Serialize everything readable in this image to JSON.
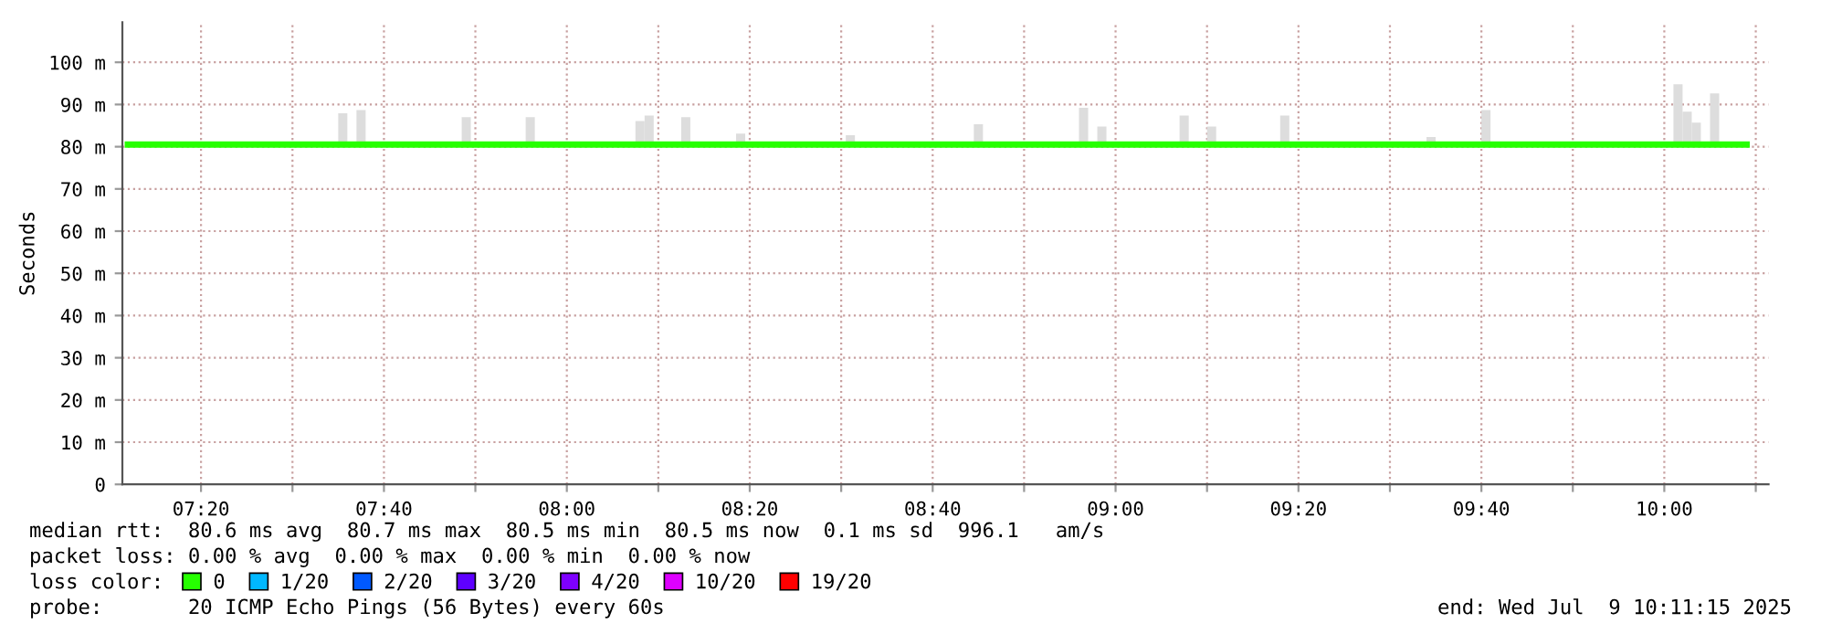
{
  "chart_data": {
    "type": "line",
    "ylabel": "Seconds",
    "legend_title": "loss color:",
    "legend": "bottom",
    "grid": true,
    "marker": "none",
    "line_style": "solid",
    "xlim": [
      7.19,
      10.19
    ],
    "xticks": [
      {
        "value": 7.3333,
        "label": "07:20"
      },
      {
        "value": 7.5,
        "label": null
      },
      {
        "value": 7.6667,
        "label": "07:40"
      },
      {
        "value": 7.8333,
        "label": null
      },
      {
        "value": 8.0,
        "label": "08:00"
      },
      {
        "value": 8.1667,
        "label": null
      },
      {
        "value": 8.3333,
        "label": "08:20"
      },
      {
        "value": 8.5,
        "label": null
      },
      {
        "value": 8.6667,
        "label": "08:40"
      },
      {
        "value": 8.8333,
        "label": null
      },
      {
        "value": 9.0,
        "label": "09:00"
      },
      {
        "value": 9.1667,
        "label": null
      },
      {
        "value": 9.3333,
        "label": "09:20"
      },
      {
        "value": 9.5,
        "label": null
      },
      {
        "value": 9.6667,
        "label": "09:40"
      },
      {
        "value": 9.8333,
        "label": null
      },
      {
        "value": 10.0,
        "label": "10:00"
      },
      {
        "value": 10.1667,
        "label": null
      }
    ],
    "ylim": [
      0,
      109.5
    ],
    "yticks": [
      {
        "value": 0,
        "label": "0"
      },
      {
        "value": 10,
        "label": "10 m"
      },
      {
        "value": 20,
        "label": "20 m"
      },
      {
        "value": 30,
        "label": "30 m"
      },
      {
        "value": 40,
        "label": "40 m"
      },
      {
        "value": 50,
        "label": "50 m"
      },
      {
        "value": 60,
        "label": "60 m"
      },
      {
        "value": 70,
        "label": "70 m"
      },
      {
        "value": 80,
        "label": "80 m"
      },
      {
        "value": 90,
        "label": "90 m"
      },
      {
        "value": 100,
        "label": "100 m"
      }
    ],
    "series": [
      {
        "type": "bar",
        "color": "#dddddd",
        "x": [
          7.5917,
          7.625,
          7.8167,
          7.9333,
          8.1333,
          8.15,
          8.2167,
          8.3167,
          8.5167,
          8.75,
          8.9417,
          8.975,
          9.125,
          9.175,
          9.3083,
          9.575,
          9.675,
          10.025,
          10.0417,
          10.0583,
          10.0917
        ],
        "base": [
          80.5,
          80.5,
          80.5,
          80.5,
          80.5,
          80.5,
          80.5,
          80.5,
          80.5,
          80.5,
          80.5,
          80.5,
          80.5,
          80.5,
          80.5,
          80.5,
          80.5,
          80.5,
          80.5,
          80.5,
          80.5
        ],
        "values": [
          7.4,
          8.2,
          6.5,
          6.5,
          5.6,
          6.9,
          6.5,
          2.6,
          2.2,
          4.8,
          8.7,
          4.3,
          6.9,
          4.3,
          6.9,
          1.8,
          8.2,
          14.3,
          7.8,
          5.2,
          12.1
        ]
      },
      {
        "name": "0",
        "color": "#26ff00",
        "x": [
          7.2,
          10.15
        ],
        "values": [
          80.5,
          80.5
        ]
      },
      {
        "name": "1/20",
        "color": "#00b8ff"
      },
      {
        "name": "2/20",
        "color": "#0059ff"
      },
      {
        "name": "3/20",
        "color": "#5e00ff"
      },
      {
        "name": "4/20",
        "color": "#7e00ff"
      },
      {
        "name": "10/20",
        "color": "#dd00ff"
      },
      {
        "name": "19/20",
        "color": "#ff0000"
      }
    ],
    "annotations": [
      "median rtt:  80.6 ms avg  80.7 ms max  80.5 ms min  80.5 ms now  0.1 ms sd  996.1   am/s",
      "packet loss: 0.00 % avg  0.00 % max  0.00 % min  0.00 % now",
      "probe:       20 ICMP Echo Pings (56 Bytes) every 60s",
      "end: Wed Jul  9 10:11:15 2025"
    ]
  }
}
